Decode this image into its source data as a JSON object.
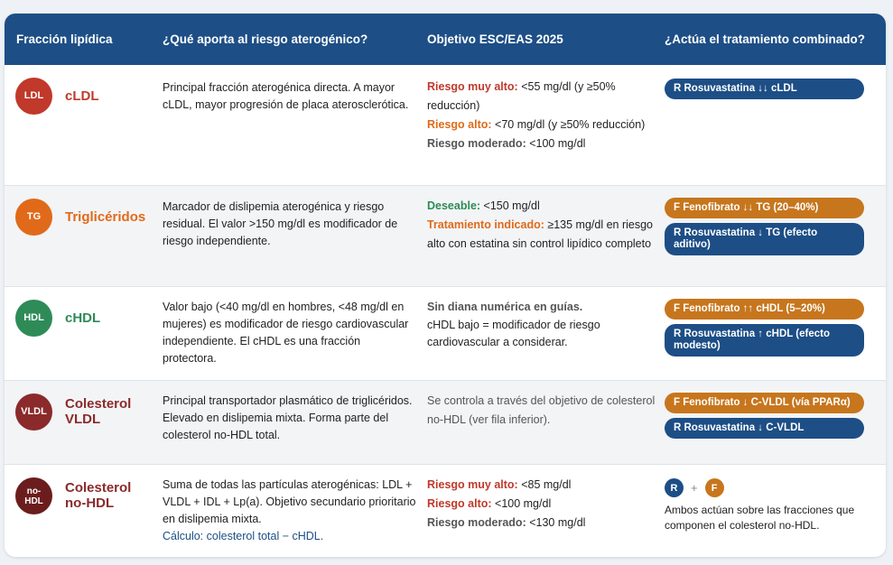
{
  "header": {
    "col1": "Fracción lipídica",
    "col2": "¿Qué aporta al riesgo aterogénico?",
    "col3": "Objetivo ESC/EAS 2025",
    "col4": "¿Actúa el tratamiento combinado?"
  },
  "colors": {
    "header_bg": "#1d4e86",
    "rosuvastatina": "#1d4e86",
    "fenofibrato": "#c7761d",
    "high_risk_red": "#c0392b",
    "accent_orange": "#e06a1a",
    "green": "#2e8b57"
  },
  "rows": [
    {
      "badge": "LDL",
      "name": "cLDL",
      "desc": "Principal fracción aterogénica directa. A mayor cLDL, mayor progresión de placa aterosclerótica.",
      "obj": [
        {
          "label": "Riesgo muy alto:",
          "text": " <55 mg/dl (y ≥50% reducción)"
        },
        {
          "label": "Riesgo alto:",
          "text": " <70 mg/dl (y ≥50% reducción)"
        },
        {
          "label": "Riesgo moderado:",
          "text": " <100 mg/dl"
        }
      ],
      "pills": [
        {
          "text": "R Rosuvastatina ↓↓ cLDL"
        }
      ]
    },
    {
      "badge": "TG",
      "name": "Triglicéridos",
      "desc": "Marcador de dislipemia aterogénica y riesgo residual. El valor >150 mg/dl es modificador de riesgo independiente.",
      "obj": [
        {
          "label": "Deseable:",
          "text": " <150 mg/dl"
        },
        {
          "label": "Tratamiento indicado:",
          "text": " ≥135 mg/dl en riesgo alto con estatina sin control lipídico completo"
        }
      ],
      "pills": [
        {
          "text": "F Fenofibrato ↓↓ TG (20–40%)"
        },
        {
          "text": "R Rosuvastatina ↓ TG (efecto aditivo)"
        }
      ]
    },
    {
      "badge": "HDL",
      "name": "cHDL",
      "desc": "Valor bajo (<40 mg/dl en hombres, <48 mg/dl en mujeres) es modificador de riesgo cardiovascular independiente. El cHDL es una fracción protectora.",
      "obj": [
        {
          "label": "Sin diana numérica en guías.",
          "text": ""
        },
        {
          "label": "",
          "text": "cHDL bajo = modificador de riesgo cardiovascular a considerar."
        }
      ],
      "pills": [
        {
          "text": "F Fenofibrato ↑↑ cHDL (5–20%)"
        },
        {
          "text": "R Rosuvastatina ↑ cHDL (efecto modesto)"
        }
      ]
    },
    {
      "badge": "VLDL",
      "name": "Colesterol VLDL",
      "desc": "Principal transportador plasmático de triglicéridos. Elevado en dislipemia mixta. Forma parte del colesterol no-HDL total.",
      "obj_note": "Se controla a través del objetivo de colesterol no-HDL (ver fila inferior).",
      "pills": [
        {
          "text": "F Fenofibrato ↓ C-VLDL (vía PPARα)"
        },
        {
          "text": "R Rosuvastatina ↓ C-VLDL"
        }
      ]
    },
    {
      "badge": "no-HDL",
      "name": "Colesterol no-HDL",
      "desc": "Suma de todas las partículas aterogénicas: LDL + VLDL + IDL + Lp(a). Objetivo secundario prioritario en dislipemia mixta.",
      "calc": "Cálculo: colesterol total − cHDL.",
      "obj": [
        {
          "label": "Riesgo muy alto:",
          "text": " <85 mg/dl"
        },
        {
          "label": "Riesgo alto:",
          "text": " <100 mg/dl"
        },
        {
          "label": "Riesgo moderado:",
          "text": " <130 mg/dl"
        }
      ],
      "combo": {
        "r": "R",
        "plus": "+",
        "f": "F",
        "note": "Ambos actúan sobre las fracciones que componen el colesterol no-HDL."
      }
    }
  ]
}
